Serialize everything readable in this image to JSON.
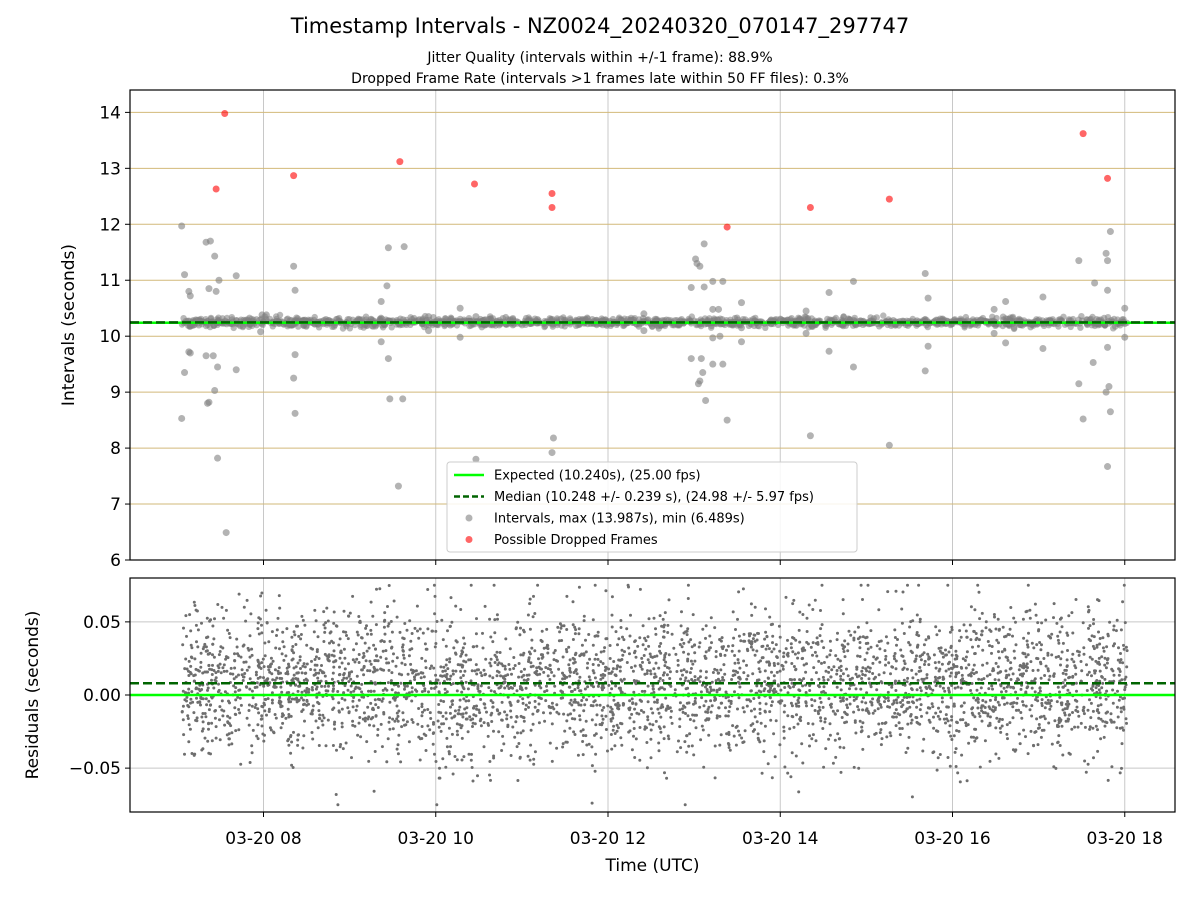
{
  "figure": {
    "title": "Timestamp Intervals - NZ0024_20240320_070147_297747",
    "subtitle_lines": [
      "Jitter Quality (intervals within +/-1 frame): 88.9%",
      "Dropped Frame Rate (intervals >1 frames late within 50 FF files): 0.3%"
    ]
  },
  "chart_data": [
    {
      "type": "scatter",
      "panel": "intervals",
      "ylabel": "Intervals (seconds)",
      "xlabel": "",
      "ylim": [
        6,
        14.4
      ],
      "xlim": [
        "2024-03-20 06:27",
        "2024-03-20 18:35"
      ],
      "yticks": [
        6,
        7,
        8,
        9,
        10,
        11,
        12,
        13,
        14
      ],
      "grid": "x-vertical gray, y-horizontal tan",
      "legend_position": "lower center",
      "legend": [
        "Expected (10.240s), (25.00 fps)",
        "Median (10.248 +/- 0.239 s), (24.98 +/- 5.97 fps)",
        "Intervals, max (13.987s), min (6.489s)",
        "Possible Dropped Frames"
      ],
      "expected_line": 10.24,
      "median_line": 10.248,
      "colors": {
        "expected": "#00ff00",
        "median": "#006400",
        "intervals": "#808080",
        "dropped": "#ff0000",
        "hgrid": "#d2b97a",
        "vgrid": "#c8c8c8"
      },
      "intervals_cluster": {
        "center": 10.25,
        "spread": 0.04,
        "time_range": [
          "2024-03-20 07:03",
          "2024-03-20 18:02"
        ]
      },
      "intervals_outliers": [
        [
          "2024-03-20 07:03",
          11.97
        ],
        [
          "2024-03-20 07:05",
          11.1
        ],
        [
          "2024-03-20 07:08",
          10.8
        ],
        [
          "2024-03-20 07:09",
          10.72
        ],
        [
          "2024-03-20 07:09",
          9.7
        ],
        [
          "2024-03-20 07:08",
          9.72
        ],
        [
          "2024-03-20 07:05",
          9.35
        ],
        [
          "2024-03-20 07:03",
          8.53
        ],
        [
          "2024-03-20 07:20",
          11.68
        ],
        [
          "2024-03-20 07:23",
          11.7
        ],
        [
          "2024-03-20 07:22",
          10.85
        ],
        [
          "2024-03-20 07:20",
          9.65
        ],
        [
          "2024-03-20 07:22",
          8.82
        ],
        [
          "2024-03-20 07:21",
          8.8
        ],
        [
          "2024-03-20 07:26",
          11.43
        ],
        [
          "2024-03-20 07:29",
          11.0
        ],
        [
          "2024-03-20 07:27",
          10.8
        ],
        [
          "2024-03-20 07:25",
          9.65
        ],
        [
          "2024-03-20 07:28",
          9.45
        ],
        [
          "2024-03-20 07:26",
          9.03
        ],
        [
          "2024-03-20 07:28",
          7.82
        ],
        [
          "2024-03-20 07:34",
          6.49
        ],
        [
          "2024-03-20 07:41",
          11.08
        ],
        [
          "2024-03-20 07:41",
          9.4
        ],
        [
          "2024-03-20 07:59",
          10.38
        ],
        [
          "2024-03-20 08:02",
          10.38
        ],
        [
          "2024-03-20 07:58",
          10.08
        ],
        [
          "2024-03-20 08:21",
          11.25
        ],
        [
          "2024-03-20 08:22",
          10.82
        ],
        [
          "2024-03-20 08:22",
          9.67
        ],
        [
          "2024-03-20 08:21",
          9.25
        ],
        [
          "2024-03-20 08:22",
          8.62
        ],
        [
          "2024-03-20 09:22",
          10.62
        ],
        [
          "2024-03-20 09:26",
          10.9
        ],
        [
          "2024-03-20 09:27",
          11.58
        ],
        [
          "2024-03-20 09:22",
          9.9
        ],
        [
          "2024-03-20 09:27",
          9.6
        ],
        [
          "2024-03-20 09:28",
          8.88
        ],
        [
          "2024-03-20 09:38",
          11.6
        ],
        [
          "2024-03-20 09:37",
          8.88
        ],
        [
          "2024-03-20 09:34",
          7.32
        ],
        [
          "2024-03-20 09:55",
          10.35
        ],
        [
          "2024-03-20 09:55",
          10.1
        ],
        [
          "2024-03-20 10:17",
          10.5
        ],
        [
          "2024-03-20 10:17",
          9.98
        ],
        [
          "2024-03-20 10:28",
          10.35
        ],
        [
          "2024-03-20 10:28",
          7.8
        ],
        [
          "2024-03-20 11:21",
          10.3
        ],
        [
          "2024-03-20 11:22",
          8.18
        ],
        [
          "2024-03-20 11:21",
          7.92
        ],
        [
          "2024-03-20 12:25",
          10.4
        ],
        [
          "2024-03-20 12:25",
          10.1
        ],
        [
          "2024-03-20 12:58",
          10.87
        ],
        [
          "2024-03-20 13:01",
          11.38
        ],
        [
          "2024-03-20 13:02",
          11.3
        ],
        [
          "2024-03-20 13:04",
          11.25
        ],
        [
          "2024-03-20 13:07",
          11.65
        ],
        [
          "2024-03-20 13:07",
          10.88
        ],
        [
          "2024-03-20 12:58",
          9.6
        ],
        [
          "2024-03-20 13:03",
          9.15
        ],
        [
          "2024-03-20 13:04",
          9.2
        ],
        [
          "2024-03-20 13:05",
          9.6
        ],
        [
          "2024-03-20 13:06",
          9.35
        ],
        [
          "2024-03-20 13:08",
          8.85
        ],
        [
          "2024-03-20 13:13",
          10.98
        ],
        [
          "2024-03-20 13:13",
          10.48
        ],
        [
          "2024-03-20 13:17",
          10.48
        ],
        [
          "2024-03-20 13:20",
          10.98
        ],
        [
          "2024-03-20 13:13",
          9.97
        ],
        [
          "2024-03-20 13:18",
          10.0
        ],
        [
          "2024-03-20 13:13",
          9.5
        ],
        [
          "2024-03-20 13:20",
          9.5
        ],
        [
          "2024-03-20 13:23",
          8.5
        ],
        [
          "2024-03-20 13:27",
          10.25
        ],
        [
          "2024-03-20 13:33",
          10.6
        ],
        [
          "2024-03-20 13:33",
          9.9
        ],
        [
          "2024-03-20 13:33",
          10.15
        ],
        [
          "2024-03-20 14:18",
          10.45
        ],
        [
          "2024-03-20 14:18",
          10.05
        ],
        [
          "2024-03-20 14:21",
          8.22
        ],
        [
          "2024-03-20 14:34",
          10.78
        ],
        [
          "2024-03-20 14:34",
          9.73
        ],
        [
          "2024-03-20 14:51",
          10.98
        ],
        [
          "2024-03-20 14:51",
          9.45
        ],
        [
          "2024-03-20 15:16",
          8.05
        ],
        [
          "2024-03-20 15:41",
          11.12
        ],
        [
          "2024-03-20 15:41",
          9.38
        ],
        [
          "2024-03-20 15:43",
          10.68
        ],
        [
          "2024-03-20 15:43",
          9.82
        ],
        [
          "2024-03-20 16:29",
          10.48
        ],
        [
          "2024-03-20 16:29",
          10.05
        ],
        [
          "2024-03-20 16:37",
          10.62
        ],
        [
          "2024-03-20 16:37",
          9.88
        ],
        [
          "2024-03-20 17:03",
          10.7
        ],
        [
          "2024-03-20 17:03",
          9.78
        ],
        [
          "2024-03-20 17:28",
          11.35
        ],
        [
          "2024-03-20 17:28",
          9.15
        ],
        [
          "2024-03-20 17:31",
          8.52
        ],
        [
          "2024-03-20 17:39",
          10.95
        ],
        [
          "2024-03-20 17:38",
          9.53
        ],
        [
          "2024-03-20 17:47",
          11.48
        ],
        [
          "2024-03-20 17:48",
          11.35
        ],
        [
          "2024-03-20 17:48",
          10.82
        ],
        [
          "2024-03-20 17:48",
          9.8
        ],
        [
          "2024-03-20 17:47",
          9.0
        ],
        [
          "2024-03-20 17:49",
          9.1
        ],
        [
          "2024-03-20 17:48",
          7.67
        ],
        [
          "2024-03-20 17:50",
          11.87
        ],
        [
          "2024-03-20 17:50",
          8.65
        ],
        [
          "2024-03-20 18:00",
          10.5
        ],
        [
          "2024-03-20 18:00",
          9.98
        ]
      ],
      "dropped_frames": [
        [
          "2024-03-20 07:33",
          13.98
        ],
        [
          "2024-03-20 07:27",
          12.63
        ],
        [
          "2024-03-20 08:21",
          12.87
        ],
        [
          "2024-03-20 09:35",
          13.12
        ],
        [
          "2024-03-20 10:27",
          12.72
        ],
        [
          "2024-03-20 11:21",
          12.55
        ],
        [
          "2024-03-20 11:21",
          12.3
        ],
        [
          "2024-03-20 13:23",
          11.95
        ],
        [
          "2024-03-20 14:21",
          12.3
        ],
        [
          "2024-03-20 15:16",
          12.45
        ],
        [
          "2024-03-20 17:31",
          13.62
        ],
        [
          "2024-03-20 17:48",
          12.82
        ]
      ]
    },
    {
      "type": "scatter",
      "panel": "residuals",
      "ylabel": "Residuals (seconds)",
      "xlabel": "Time (UTC)",
      "ylim": [
        -0.08,
        0.08
      ],
      "xlim": [
        "2024-03-20 06:27",
        "2024-03-20 18:35"
      ],
      "yticks": [
        -0.05,
        0.0,
        0.05
      ],
      "ytick_labels": [
        "−0.05",
        "0.00",
        "0.05"
      ],
      "xticks": [
        "2024-03-20 08:00",
        "2024-03-20 10:00",
        "2024-03-20 12:00",
        "2024-03-20 14:00",
        "2024-03-20 16:00",
        "2024-03-20 18:00"
      ],
      "xtick_labels": [
        "03-20 08",
        "03-20 10",
        "03-20 12",
        "03-20 14",
        "03-20 16",
        "03-20 18"
      ],
      "grid": true,
      "expected_line": 0.0,
      "median_line": 0.008,
      "residuals": {
        "mean": 0.008,
        "std": 0.025,
        "min": -0.075,
        "max": 0.075,
        "time_range": [
          "2024-03-20 07:03",
          "2024-03-20 18:02"
        ],
        "approx_count": 3800
      },
      "colors": {
        "points": "#6e6e6e",
        "expected": "#00ff00",
        "median": "#006400",
        "grid": "#c8c8c8"
      }
    }
  ]
}
